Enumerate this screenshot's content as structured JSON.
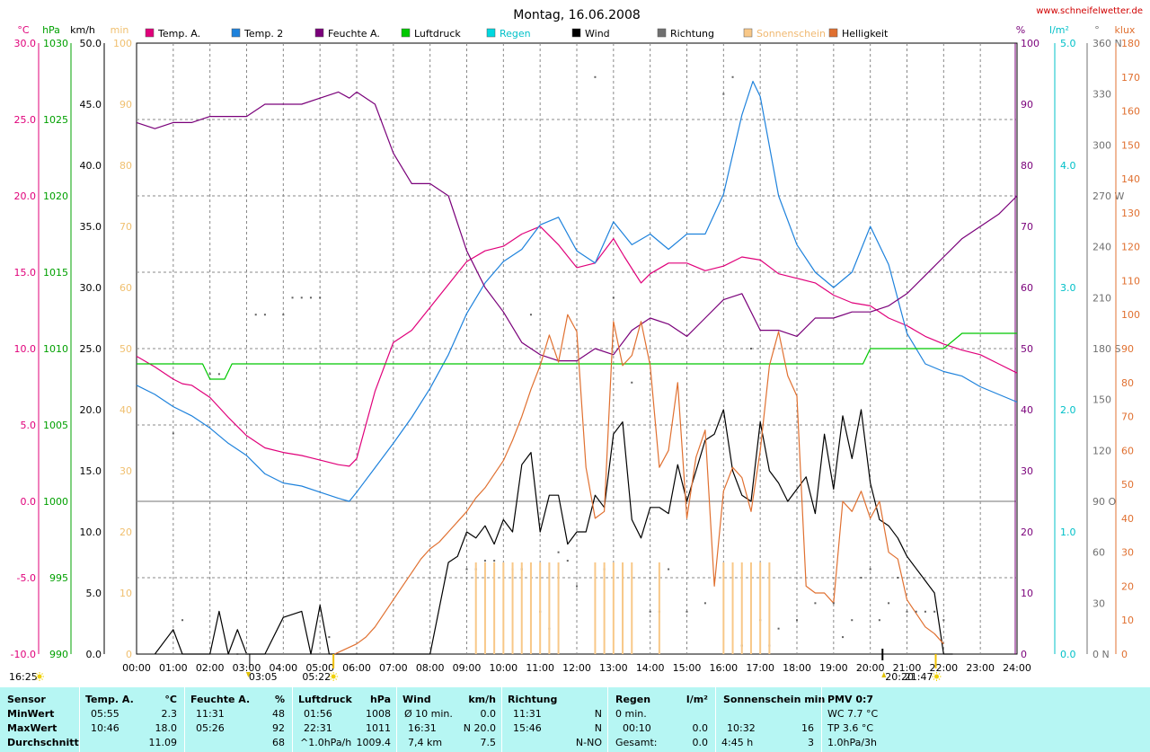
{
  "title": "Montag, 16.06.2008",
  "website": "www.schneifelwetter.de",
  "colors": {
    "temp_a": "#e0007a",
    "temp_2": "#1e82dc",
    "humidity": "#7a007a",
    "pressure": "#00c800",
    "rain": "#00d8e0",
    "wind": "#000000",
    "direction": "#707070",
    "sunshine": "#f8c888",
    "brightness": "#e07030",
    "wind_axis": "#000000",
    "sun_axis": "#f0c070",
    "table_bg": "#b6f6f3"
  },
  "legend": [
    {
      "label": "Temp. A.",
      "color": "#e0007a"
    },
    {
      "label": "Temp. 2",
      "color": "#1e82dc"
    },
    {
      "label": "Feuchte A.",
      "color": "#7a007a"
    },
    {
      "label": "Luftdruck",
      "color": "#00c800"
    },
    {
      "label": "Regen",
      "color": "#00d8e0"
    },
    {
      "label": "Wind",
      "color": "#000000"
    },
    {
      "label": "Richtung",
      "color": "#707070"
    },
    {
      "label": "Sonnenschein",
      "color": "#f8c888"
    },
    {
      "label": "Helligkeit",
      "color": "#e07030"
    }
  ],
  "axis_units": {
    "temp": "°C",
    "pressure": "hPa",
    "wind": "km/h",
    "sun": "min",
    "humidity": "%",
    "rain": "l/m²",
    "direction": "°",
    "brightness": "klux"
  },
  "astro": {
    "left_time": "16:25",
    "moonset": "03:05",
    "sunrise": "05:22",
    "sunset": "21:47",
    "moonrise": "20:20"
  },
  "chart_data": {
    "type": "line",
    "xlabel": "",
    "x_ticks": [
      "00:00",
      "01:00",
      "02:00",
      "03:00",
      "04:00",
      "05:00",
      "06:00",
      "07:00",
      "08:00",
      "09:00",
      "10:00",
      "11:00",
      "12:00",
      "13:00",
      "14:00",
      "15:00",
      "16:00",
      "17:00",
      "18:00",
      "19:00",
      "20:00",
      "21:00",
      "22:00",
      "23:00",
      "24:00"
    ],
    "axes": {
      "temp": {
        "range": [
          -10,
          30
        ],
        "ticks": [
          "-10.0",
          "-5.0",
          "0.0",
          "5.0",
          "10.0",
          "15.0",
          "20.0",
          "25.0",
          "30.0"
        ]
      },
      "pressure": {
        "range": [
          990,
          1030
        ],
        "ticks": [
          "990",
          "995",
          "1000",
          "1005",
          "1010",
          "1015",
          "1020",
          "1025",
          "1030"
        ]
      },
      "wind": {
        "range": [
          0,
          50
        ],
        "ticks": [
          "0.0",
          "5.0",
          "10.0",
          "15.0",
          "20.0",
          "25.0",
          "30.0",
          "35.0",
          "40.0",
          "45.0",
          "50.0"
        ]
      },
      "sun": {
        "range": [
          0,
          100
        ],
        "ticks": [
          "0",
          "10",
          "20",
          "30",
          "40",
          "50",
          "60",
          "70",
          "80",
          "90",
          "100"
        ]
      },
      "humidity": {
        "range": [
          0,
          100
        ],
        "ticks": [
          "0",
          "10",
          "20",
          "30",
          "40",
          "50",
          "60",
          "70",
          "80",
          "90",
          "100"
        ]
      },
      "rain": {
        "range": [
          0,
          5
        ],
        "ticks": [
          "0.0",
          "1.0",
          "2.0",
          "3.0",
          "4.0",
          "5.0"
        ]
      },
      "direction": {
        "range": [
          0,
          360
        ],
        "ticks": [
          "0 N",
          "30",
          "60",
          "90 O",
          "120",
          "150",
          "180 S",
          "210",
          "240",
          "270 W",
          "300",
          "330",
          "360 N"
        ]
      },
      "brightness": {
        "range": [
          0,
          180
        ],
        "ticks": [
          "0",
          "10",
          "20",
          "30",
          "40",
          "50",
          "60",
          "70",
          "80",
          "90",
          "100",
          "110",
          "120",
          "130",
          "140",
          "150",
          "160",
          "170",
          "180"
        ]
      }
    },
    "series": [
      {
        "name": "Temp. A.",
        "axis": "temp",
        "x": [
          0,
          0.5,
          1,
          1.25,
          1.5,
          2,
          2.5,
          3,
          3.5,
          4,
          4.5,
          5,
          5.5,
          5.8,
          6,
          6.5,
          7,
          7.5,
          8,
          8.5,
          9,
          9.5,
          10,
          10.5,
          11,
          11.5,
          12,
          12.5,
          13,
          13.3,
          13.75,
          14,
          14.5,
          15,
          15.5,
          16,
          16.5,
          17,
          17.5,
          18,
          18.5,
          19,
          19.5,
          20,
          20.5,
          21,
          21.5,
          22,
          22.5,
          23,
          23.5,
          24
        ],
        "y": [
          9.5,
          8.8,
          8,
          7.7,
          7.6,
          6.8,
          5.5,
          4.3,
          3.5,
          3.2,
          3.0,
          2.7,
          2.4,
          2.3,
          2.8,
          7.2,
          10.4,
          11.2,
          12.7,
          14.2,
          15.7,
          16.4,
          16.7,
          17.5,
          18.0,
          16.8,
          15.3,
          15.6,
          17.2,
          16.0,
          14.3,
          14.9,
          15.6,
          15.6,
          15.1,
          15.4,
          16.0,
          15.8,
          14.9,
          14.6,
          14.3,
          13.5,
          13.0,
          12.8,
          12.0,
          11.5,
          10.8,
          10.3,
          9.9,
          9.6,
          9.0,
          8.4
        ]
      },
      {
        "name": "Temp. 2",
        "axis": "temp",
        "x": [
          0,
          0.5,
          1,
          1.5,
          2,
          2.5,
          3,
          3.5,
          4,
          4.5,
          5,
          5.5,
          5.8,
          6,
          6.5,
          7,
          7.5,
          8,
          8.5,
          9,
          9.5,
          10,
          10.5,
          11,
          11.5,
          12,
          12.5,
          13,
          13.5,
          14,
          14.5,
          15,
          15.5,
          16,
          16.5,
          16.8,
          17,
          17.5,
          18,
          18.5,
          19,
          19.5,
          20,
          20.5,
          21,
          21.5,
          22,
          22.5,
          23,
          23.5,
          24
        ],
        "y": [
          7.6,
          7.0,
          6.2,
          5.6,
          4.8,
          3.8,
          3.0,
          1.8,
          1.2,
          1.0,
          0.6,
          0.2,
          0.0,
          0.6,
          2.2,
          3.8,
          5.5,
          7.4,
          9.6,
          12.3,
          14.3,
          15.7,
          16.5,
          18.1,
          18.6,
          16.4,
          15.6,
          18.3,
          16.8,
          17.5,
          16.5,
          17.5,
          17.5,
          20.1,
          25.3,
          27.5,
          26.5,
          20.0,
          16.8,
          15.0,
          14.0,
          15.0,
          18.0,
          15.5,
          11.0,
          9.0,
          8.5,
          8.2,
          7.5,
          7.0,
          6.5
        ]
      },
      {
        "name": "Feuchte A.",
        "axis": "humidity",
        "x": [
          0,
          0.5,
          1,
          1.5,
          2,
          2.5,
          3,
          3.5,
          4,
          4.5,
          5,
          5.5,
          5.8,
          6,
          6.5,
          7,
          7.5,
          8,
          8.5,
          9,
          9.5,
          10,
          10.5,
          11,
          11.5,
          12,
          12.5,
          13,
          13.5,
          14,
          14.5,
          15,
          15.5,
          16,
          16.5,
          17,
          17.5,
          18,
          18.5,
          19,
          19.5,
          20,
          20.5,
          21,
          21.5,
          22,
          22.5,
          23,
          23.5,
          24
        ],
        "y": [
          87,
          86,
          87,
          87,
          88,
          88,
          88,
          90,
          90,
          90,
          91,
          92,
          91,
          92,
          90,
          82,
          77,
          77,
          75,
          66,
          60,
          56,
          51,
          49,
          48,
          48,
          50,
          49,
          53,
          55,
          54,
          52,
          55,
          58,
          59,
          53,
          53,
          52,
          55,
          55,
          56,
          56,
          57,
          59,
          62,
          65,
          68,
          70,
          72,
          75
        ]
      },
      {
        "name": "Luftdruck",
        "axis": "pressure",
        "x": [
          0,
          1,
          1.8,
          2,
          2.4,
          2.6,
          3,
          4,
          5,
          6,
          7,
          8,
          9,
          10,
          11,
          12,
          13,
          14,
          15,
          16,
          17,
          18,
          19,
          19.8,
          20,
          20.5,
          21,
          21.5,
          22,
          22.5,
          23,
          24
        ],
        "y": [
          1009,
          1009,
          1009,
          1008,
          1008,
          1009,
          1009,
          1009,
          1009,
          1009,
          1009,
          1009,
          1009,
          1009,
          1009,
          1009,
          1009,
          1009,
          1009,
          1009,
          1009,
          1009,
          1009,
          1009,
          1010,
          1010,
          1010,
          1010,
          1010,
          1011,
          1011,
          1011
        ]
      },
      {
        "name": "Wind",
        "axis": "wind",
        "x": [
          0.5,
          1,
          1.25,
          1.5,
          2,
          2.25,
          2.5,
          2.75,
          3,
          3.5,
          4,
          4.5,
          4.75,
          5,
          5.25,
          5.5,
          6,
          7,
          8,
          8.5,
          8.75,
          9,
          9.25,
          9.5,
          9.75,
          10,
          10.25,
          10.5,
          10.75,
          11,
          11.25,
          11.5,
          11.75,
          12,
          12.25,
          12.5,
          12.75,
          13,
          13.25,
          13.5,
          13.75,
          14,
          14.25,
          14.5,
          14.75,
          15,
          15.25,
          15.5,
          15.75,
          16,
          16.25,
          16.5,
          16.75,
          17,
          17.25,
          17.5,
          17.75,
          18,
          18.25,
          18.5,
          18.75,
          19,
          19.25,
          19.5,
          19.75,
          20,
          20.25,
          20.5,
          20.75,
          21,
          21.25,
          21.5,
          21.75,
          22,
          22.25
        ],
        "y": [
          0,
          2.0,
          0,
          0,
          0,
          3.5,
          0,
          2.0,
          0,
          0,
          3.0,
          3.5,
          0,
          4.0,
          0,
          0,
          0,
          0,
          0,
          7.5,
          8.0,
          10.0,
          9.5,
          10.5,
          9.0,
          11.0,
          10.0,
          15.5,
          16.5,
          10.0,
          13.0,
          13.0,
          9.0,
          10.0,
          10.0,
          13.0,
          12.0,
          18.0,
          19.0,
          11.0,
          9.5,
          12.0,
          12.0,
          11.5,
          15.5,
          12.5,
          15.0,
          17.5,
          18.0,
          20.0,
          15.0,
          13.0,
          12.5,
          19.0,
          15.0,
          14.0,
          12.5,
          13.5,
          14.5,
          11.5,
          18.0,
          13.5,
          19.5,
          16.0,
          20.0,
          14.0,
          11.0,
          10.5,
          9.5,
          8.0,
          7.0,
          6.0,
          5.0,
          0.0,
          0.0
        ]
      },
      {
        "name": "Helligkeit",
        "axis": "brightness",
        "x": [
          5.4,
          5.6,
          5.8,
          6,
          6.25,
          6.5,
          6.75,
          7,
          7.25,
          7.5,
          7.75,
          8,
          8.25,
          8.5,
          8.75,
          9,
          9.25,
          9.5,
          9.75,
          10,
          10.25,
          10.5,
          10.75,
          11,
          11.25,
          11.5,
          11.75,
          12,
          12.25,
          12.5,
          12.75,
          13,
          13.25,
          13.5,
          13.75,
          14,
          14.25,
          14.5,
          14.75,
          15,
          15.25,
          15.5,
          15.75,
          16,
          16.25,
          16.5,
          16.75,
          17,
          17.25,
          17.5,
          17.75,
          18,
          18.25,
          18.5,
          18.75,
          19,
          19.25,
          19.5,
          19.75,
          20,
          20.25,
          20.5,
          20.75,
          21,
          21.25,
          21.5,
          21.75,
          22
        ],
        "y": [
          0,
          1,
          2,
          3,
          5,
          8,
          12,
          16,
          20,
          24,
          28,
          31,
          33,
          36,
          39,
          42,
          46,
          49,
          53,
          57,
          63,
          70,
          78,
          85,
          94,
          86,
          100,
          95,
          55,
          40,
          42,
          98,
          85,
          88,
          98,
          85,
          55,
          60,
          80,
          40,
          58,
          66,
          20,
          48,
          55,
          52,
          42,
          60,
          85,
          95,
          82,
          76,
          20,
          18,
          18,
          15,
          45,
          42,
          48,
          40,
          45,
          30,
          28,
          16,
          12,
          8,
          6,
          3
        ]
      },
      {
        "name": "Richtung",
        "axis": "direction",
        "x": [
          1.0,
          1.25,
          2.0,
          2.25,
          2.75,
          3.0,
          3.25,
          3.5,
          4.0,
          4.25,
          4.5,
          4.75,
          5.0,
          5.25,
          9.0,
          9.25,
          9.5,
          9.75,
          10.25,
          10.5,
          10.75,
          11.0,
          11.25,
          11.5,
          11.75,
          12.0,
          12.5,
          12.75,
          13.0,
          13.5,
          14.0,
          14.25,
          14.5,
          15.0,
          15.5,
          16.0,
          16.25,
          16.5,
          16.75,
          17.0,
          17.25,
          17.5,
          18.0,
          18.5,
          19.0,
          19.25,
          19.5,
          19.75,
          20.0,
          20.25,
          20.5,
          20.75,
          21.0,
          21.25,
          21.5,
          21.75,
          22.0
        ],
        "y": [
          130,
          20,
          165,
          165,
          0,
          0,
          200,
          200,
          200,
          210,
          210,
          210,
          210,
          10,
          50,
          50,
          55,
          55,
          50,
          50,
          200,
          25,
          15,
          60,
          55,
          40,
          340,
          50,
          210,
          160,
          25,
          25,
          50,
          25,
          30,
          330,
          340,
          5,
          180,
          20,
          5,
          15,
          20,
          30,
          30,
          10,
          20,
          45,
          50,
          20,
          30,
          45,
          25,
          25,
          25,
          25,
          20
        ]
      },
      {
        "name": "Sonnenschein",
        "axis": "sun",
        "x": [
          9.25,
          9.5,
          9.75,
          10.0,
          10.25,
          10.5,
          10.75,
          11.0,
          11.25,
          11.5,
          12.5,
          12.75,
          13.0,
          13.25,
          13.5,
          14.25,
          16.0,
          16.25,
          16.5,
          16.75,
          17.0,
          17.25
        ],
        "y": [
          15,
          15,
          15,
          15,
          15,
          15,
          15,
          15,
          15,
          15,
          15,
          15,
          15,
          15,
          15,
          15,
          15,
          15,
          15,
          15,
          15,
          15
        ]
      }
    ]
  },
  "stats": {
    "headers": {
      "sensor": "Sensor",
      "temp": "Temp. A.",
      "temp_unit": "°C",
      "hum": "Feuchte A.",
      "hum_unit": "%",
      "press": "Luftdruck",
      "press_unit": "hPa",
      "wind": "Wind",
      "wind_unit": "km/h",
      "dir": "Richtung",
      "rain": "Regen",
      "rain_unit": "l/m²",
      "sun": "Sonnenschein min",
      "pmv": "PMV 0:7"
    },
    "rows": {
      "min": {
        "label": "MinWert",
        "temp_time": "05:55",
        "temp_val": "2.3",
        "hum_time": "11:31",
        "hum_val": "48",
        "press_time": "01:56",
        "press_val": "1008",
        "wind_time": "Ø 10 min.",
        "wind_val": "0.0",
        "dir_time": "11:31",
        "dir_val": "N",
        "rain_time": "0 min.",
        "rain_val": "",
        "sun_time": "",
        "sun_val": "",
        "pmv": "WC 7.7 °C"
      },
      "max": {
        "label": "MaxWert",
        "temp_time": "10:46",
        "temp_val": "18.0",
        "hum_time": "05:26",
        "hum_val": "92",
        "press_time": "22:31",
        "press_val": "1011",
        "wind_time": "16:31",
        "wind_val": "N 20.0",
        "dir_time": "15:46",
        "dir_val": "N",
        "rain_time": "00:10",
        "rain_val": "0.0",
        "sun_time": "10:32",
        "sun_val": "16",
        "pmv": "TP 3.6 °C"
      },
      "avg": {
        "label": "Durchschnitt",
        "temp_time": "",
        "temp_val": "11.09",
        "hum_time": "",
        "hum_val": "68",
        "press_time": "^1.0hPa/h",
        "press_val": "1009.4",
        "wind_time": "7,4 km",
        "wind_val": "7.5",
        "dir_time": "",
        "dir_val": "N-NO",
        "rain_time": "Gesamt:",
        "rain_val": "0.0",
        "sun_time": "4:45 h",
        "sun_val": "3",
        "pmv": "1.0hPa/3h"
      }
    }
  }
}
